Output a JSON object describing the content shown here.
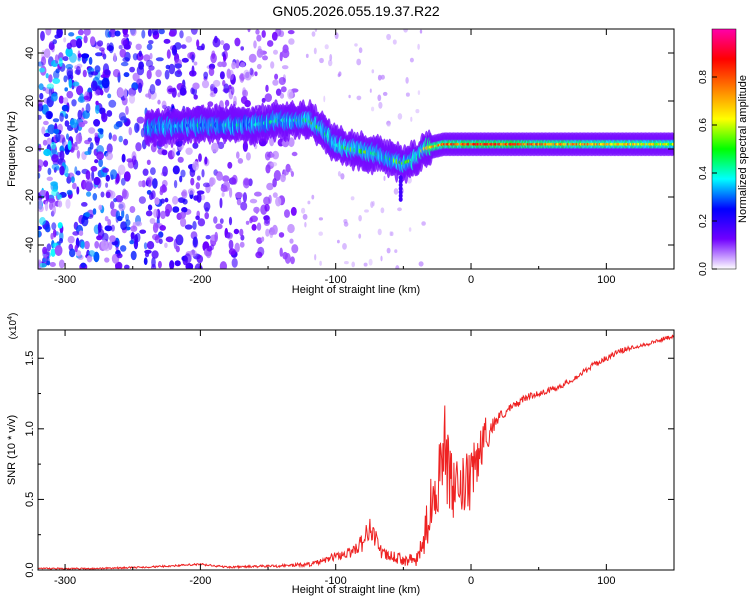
{
  "figure": {
    "title": "GN05.2026.055.19.37.R22"
  },
  "chart_data": [
    {
      "type": "heatmap",
      "title": "",
      "xlabel": "Height of straight line (km)",
      "ylabel": "Frequency (Hz)",
      "xlim": [
        -320,
        150
      ],
      "ylim": [
        -50,
        50
      ],
      "xticks": [
        -300,
        -200,
        -100,
        0,
        100
      ],
      "yticks": [
        -40,
        -20,
        0,
        20,
        40
      ],
      "xtick_labels": [
        "-300",
        "-200",
        "-100",
        "0",
        "100"
      ],
      "ytick_labels": [
        "-40",
        "-20",
        "0",
        "20",
        "40"
      ],
      "colorbar": {
        "label": "Normalized spectral amplitude",
        "range": [
          0,
          1
        ],
        "ticks": [
          0.0,
          0.2,
          0.4,
          0.6,
          0.8
        ],
        "tick_labels": [
          "0.0",
          "0.2",
          "0.4",
          "0.6",
          "0.8"
        ],
        "stops": [
          "#ffffff",
          "#7000ff",
          "#0000ff",
          "#00ffff",
          "#00ff00",
          "#ffff00",
          "#ff8000",
          "#ff0000",
          "#ff00aa"
        ]
      },
      "ridge": {
        "x": [
          -240,
          -200,
          -160,
          -140,
          -120,
          -110,
          -100,
          -90,
          -80,
          -70,
          -60,
          -50,
          -40,
          -35,
          -20,
          0,
          20,
          60,
          100,
          150
        ],
        "y": [
          9,
          10,
          10,
          12,
          12,
          8,
          2,
          0,
          -1,
          -2,
          -4,
          -6,
          -4,
          0,
          2,
          2,
          2,
          2,
          2,
          2
        ],
        "amplitude": [
          0.35,
          0.35,
          0.35,
          0.4,
          0.45,
          0.45,
          0.45,
          0.5,
          0.5,
          0.5,
          0.5,
          0.45,
          0.5,
          0.6,
          0.75,
          0.8,
          0.8,
          0.75,
          0.7,
          0.6
        ]
      },
      "noise_region_x": [
        -320,
        -130
      ]
    },
    {
      "type": "line",
      "title": "",
      "xlabel": "Height of straight line (km)",
      "ylabel": "SNR (10 * v/v)",
      "multiplier_label": "(x10",
      "multiplier_exp": "4",
      "multiplier_close": ")",
      "xlim": [
        -320,
        150
      ],
      "ylim": [
        0,
        1.7
      ],
      "xticks": [
        -300,
        -200,
        -100,
        0,
        100
      ],
      "yticks": [
        0.0,
        0.5,
        1.0,
        1.5
      ],
      "xtick_labels": [
        "-300",
        "-200",
        "-100",
        "0",
        "100"
      ],
      "ytick_labels": [
        "0.0",
        "0.5",
        "1.0",
        "1.5"
      ],
      "series": [
        {
          "name": "SNR",
          "color": "#ee2222",
          "x": [
            -320,
            -280,
            -240,
            -220,
            -200,
            -180,
            -140,
            -120,
            -110,
            -100,
            -90,
            -80,
            -75,
            -70,
            -65,
            -60,
            -50,
            -40,
            -35,
            -30,
            -25,
            -22,
            -20,
            -18,
            -15,
            -12,
            -10,
            -5,
            0,
            5,
            10,
            15,
            20,
            30,
            40,
            50,
            60,
            70,
            80,
            90,
            100,
            110,
            120,
            130,
            140,
            150
          ],
          "y": [
            0.01,
            0.01,
            0.02,
            0.03,
            0.04,
            0.02,
            0.03,
            0.04,
            0.06,
            0.1,
            0.12,
            0.2,
            0.3,
            0.22,
            0.1,
            0.1,
            0.07,
            0.07,
            0.2,
            0.45,
            0.62,
            0.82,
            0.95,
            0.75,
            0.6,
            0.55,
            0.55,
            0.6,
            0.62,
            0.8,
            0.95,
            1.0,
            1.08,
            1.15,
            1.22,
            1.25,
            1.28,
            1.32,
            1.38,
            1.45,
            1.5,
            1.55,
            1.58,
            1.6,
            1.63,
            1.66
          ],
          "noise": [
            0.005,
            0.005,
            0.006,
            0.006,
            0.008,
            0.006,
            0.01,
            0.015,
            0.02,
            0.03,
            0.04,
            0.07,
            0.08,
            0.07,
            0.05,
            0.04,
            0.04,
            0.05,
            0.12,
            0.2,
            0.25,
            0.28,
            0.3,
            0.28,
            0.25,
            0.22,
            0.22,
            0.22,
            0.22,
            0.2,
            0.14,
            0.08,
            0.04,
            0.03,
            0.025,
            0.02,
            0.02,
            0.02,
            0.02,
            0.02,
            0.02,
            0.02,
            0.015,
            0.015,
            0.015,
            0.015
          ]
        }
      ]
    }
  ]
}
